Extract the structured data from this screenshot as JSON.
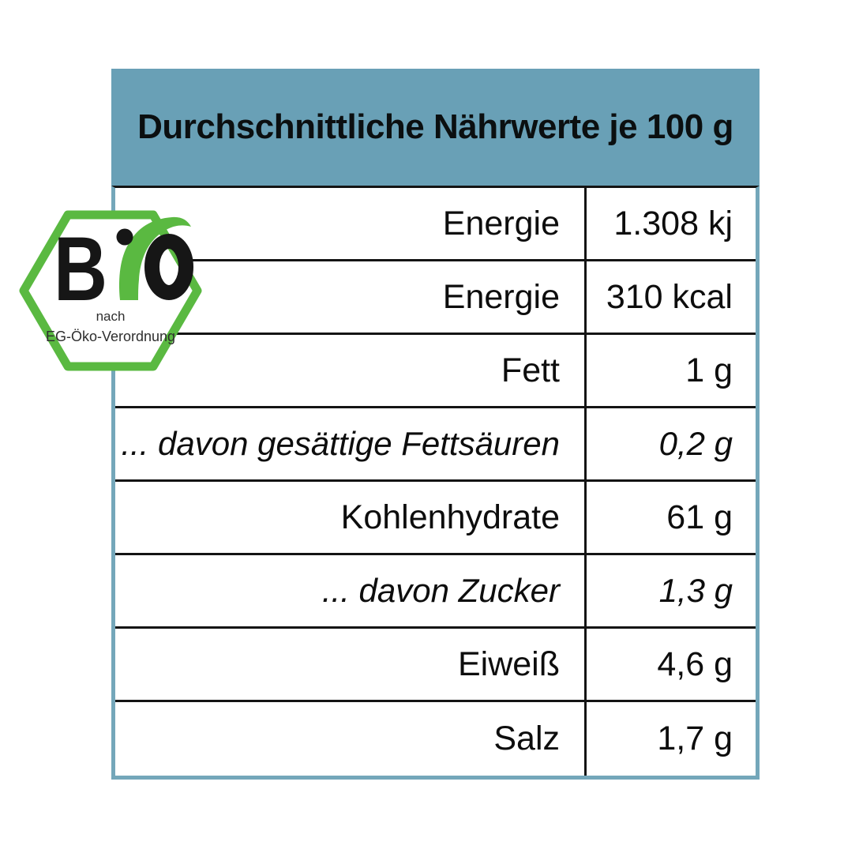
{
  "title": "Durchschnittliche Nährwerte je 100 g",
  "colors": {
    "header_bg": "#69a0b6",
    "border_blue": "#74a7ba",
    "line_black": "#141414",
    "text_black": "#0d0d0d",
    "bio_green": "#5ab941",
    "seal_text": "#2e2e2e"
  },
  "table": {
    "unit_basis": "je 100 g",
    "rows": [
      {
        "label": "Energie",
        "value": "1.308 kj",
        "style": "normal"
      },
      {
        "label": "Energie",
        "value": "310 kcal",
        "style": "normal"
      },
      {
        "label": "Fett",
        "value": "1 g",
        "style": "normal"
      },
      {
        "label": "... davon gesättige Fettsäuren",
        "value": "0,2 g",
        "style": "italic"
      },
      {
        "label": "Kohlenhydrate",
        "value": "61 g",
        "style": "normal"
      },
      {
        "label": "... davon Zucker",
        "value": "1,3 g",
        "style": "italic"
      },
      {
        "label": "Eiweiß",
        "value": "4,6 g",
        "style": "normal"
      },
      {
        "label": "Salz",
        "value": "1,7 g",
        "style": "normal"
      }
    ]
  },
  "bio_seal": {
    "wordmark": "BiO",
    "letter_b": "B",
    "subtitle_line1": "nach",
    "subtitle_line2": "EG-Öko-Verordnung"
  }
}
